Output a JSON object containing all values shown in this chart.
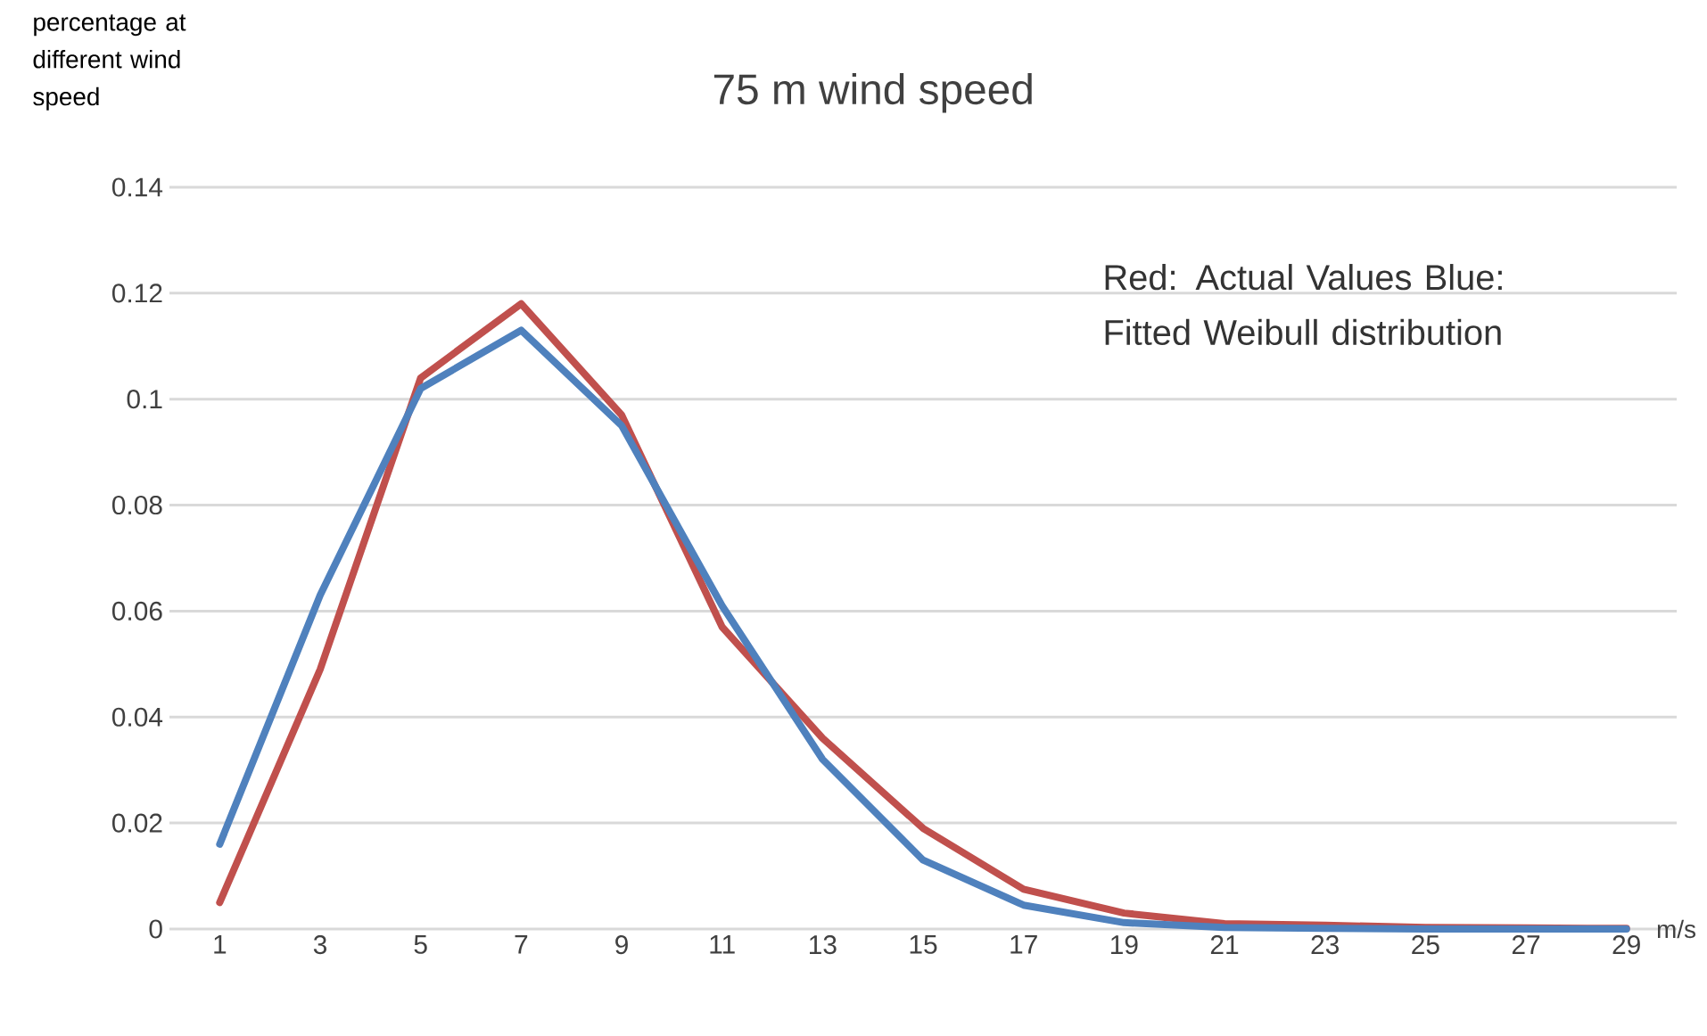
{
  "chart_data": {
    "type": "line",
    "title": "75 m wind speed",
    "ylabel": "percentage at different wind speed",
    "xlabel": "m/s",
    "categories": [
      "1",
      "3",
      "5",
      "7",
      "9",
      "11",
      "13",
      "15",
      "17",
      "19",
      "21",
      "23",
      "25",
      "27",
      "29"
    ],
    "series": [
      {
        "color": "#c0504d",
        "values": [
          0.005,
          0.049,
          0.104,
          0.118,
          0.097,
          0.057,
          0.036,
          0.019,
          0.0075,
          0.003,
          0.001,
          0.0007,
          0.0003,
          0.0002,
          0.0001
        ]
      },
      {
        "color": "#4f81bd",
        "values": [
          0.016,
          0.063,
          0.102,
          0.113,
          0.095,
          0.061,
          0.032,
          0.013,
          0.0045,
          0.0012,
          0.0003,
          0.0001,
          0,
          0,
          0
        ]
      }
    ],
    "ylim": [
      0,
      0.14
    ],
    "yticks": [
      0,
      0.02,
      0.04,
      0.06,
      0.08,
      0.1,
      0.12,
      0.14
    ],
    "grid": "y",
    "annotations": [
      "Red: Actual Values Blue: Fitted Weibull distribution"
    ]
  }
}
